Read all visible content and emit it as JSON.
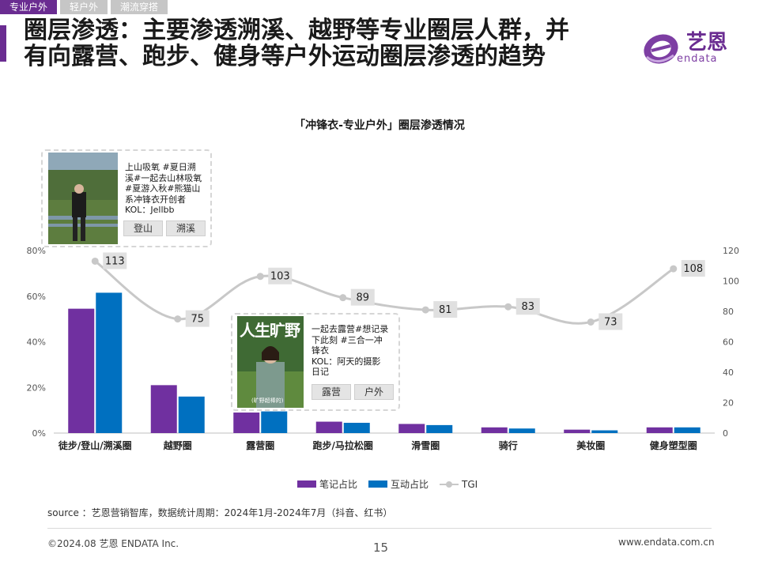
{
  "tabs": [
    {
      "label": "专业户外",
      "active": true
    },
    {
      "label": "轻户外",
      "active": false
    },
    {
      "label": "潮流穿搭",
      "active": false
    }
  ],
  "title": {
    "line1": "圈层渗透：主要渗透溯溪、越野等专业圈层人群，并",
    "line2": "有向露营、跑步、健身等户外运动圈层渗透的趋势"
  },
  "logo": {
    "cn": "艺恩",
    "en": "endata"
  },
  "chart_title": "「冲锋衣-专业户外」圈层渗透情况",
  "chart_data": {
    "type": "bar",
    "title": "「冲锋衣-专业户外」圈层渗透情况",
    "categories": [
      "徒步/登山/溯溪圈",
      "越野圈",
      "露营圈",
      "跑步/马拉松圈",
      "滑雪圈",
      "骑行",
      "美妆圈",
      "健身塑型圈"
    ],
    "series": [
      {
        "name": "笔记占比",
        "type": "bar",
        "axis": "left",
        "color": "#7030a0",
        "values": [
          54.5,
          21,
          9,
          5,
          4,
          2.5,
          1.5,
          2.5
        ]
      },
      {
        "name": "互动占比",
        "type": "bar",
        "axis": "left",
        "color": "#0070c0",
        "values": [
          61.5,
          16,
          9.5,
          4.5,
          3.5,
          2,
          1.2,
          2.5
        ]
      },
      {
        "name": "TGI",
        "type": "line",
        "axis": "right",
        "color": "#c8c8c8",
        "values": [
          113,
          75,
          103,
          89,
          81,
          83,
          73,
          108
        ]
      }
    ],
    "y_left": {
      "ylim": [
        0,
        80
      ],
      "ticks": [
        "0%",
        "20%",
        "40%",
        "60%",
        "80%"
      ],
      "tick_values": [
        0,
        20,
        40,
        60,
        80
      ]
    },
    "y_right": {
      "ylim": [
        0,
        120
      ],
      "ticks": [
        "0",
        "20",
        "40",
        "60",
        "80",
        "100",
        "120"
      ],
      "tick_values": [
        0,
        20,
        40,
        60,
        80,
        100,
        120
      ]
    },
    "grid": false,
    "legend": "bottom"
  },
  "callouts": [
    {
      "text": "上山吸氧  #夏日溯\n溪#一起去山林吸氧\n#夏游入秋#熊猫山\n系冲锋衣开创者\nKOL：Jellbb",
      "tags": [
        "登山",
        "溯溪"
      ]
    },
    {
      "text": "一起去露营#想记录\n下此刻 #三合一冲\n锋衣\nKOL：阿天的摄影\n日记",
      "tags": [
        "露营",
        "户外"
      ],
      "cover_title": "人生旷野",
      "cover_sub": "(旷野超棒的)"
    }
  ],
  "source": "source ：艺恩营销智库，数据统计周期：2024年1月-2024年7月（抖音、红书）",
  "footer": {
    "left": "©2024.08  艺恩 ENDATA Inc.",
    "page": "15",
    "right": "www.endata.com.cn"
  }
}
